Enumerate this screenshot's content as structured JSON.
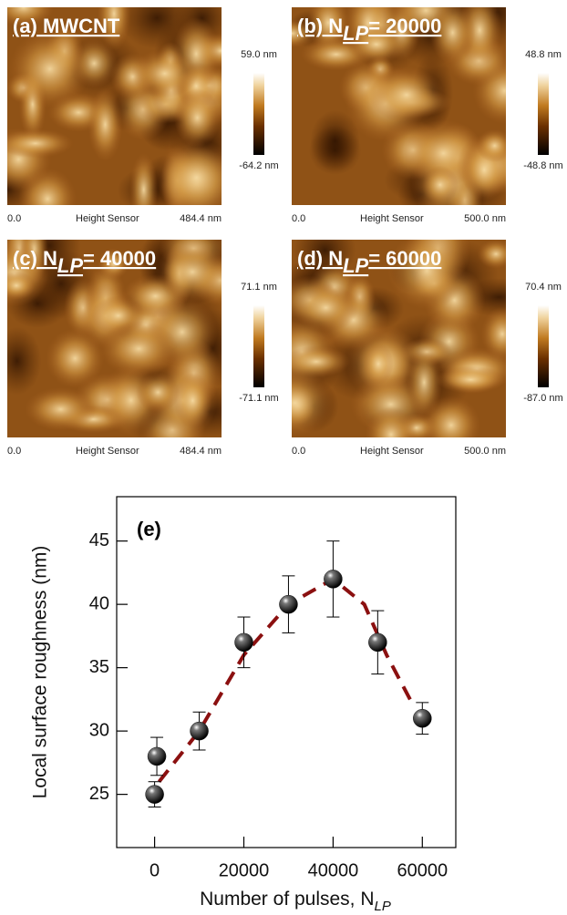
{
  "panels": [
    {
      "label_prefix": "(a) MWCNT",
      "max_label": "59.0 nm",
      "min_label": "-64.2 nm",
      "x_start": "0.0",
      "channel": "Height Sensor",
      "scan_size": "484.4 nm"
    },
    {
      "label_prefix": "(b) N",
      "label_sub": "LP",
      "label_suffix": "= 20000",
      "max_label": "48.8 nm",
      "min_label": "-48.8 nm",
      "x_start": "0.0",
      "channel": "Height Sensor",
      "scan_size": "500.0 nm"
    },
    {
      "label_prefix": "(c) N",
      "label_sub": "LP",
      "label_suffix": "= 40000",
      "max_label": "71.1 nm",
      "min_label": "-71.1 nm",
      "x_start": "0.0",
      "channel": "Height Sensor",
      "scan_size": "484.4 nm"
    },
    {
      "label_prefix": "(d) N",
      "label_sub": "LP",
      "label_suffix": "= 60000",
      "max_label": "70.4 nm",
      "min_label": "-87.0 nm",
      "x_start": "0.0",
      "channel": "Height Sensor",
      "scan_size": "500.0 nm"
    }
  ],
  "chart_data": {
    "type": "scatter",
    "annotation": "(e)",
    "y_label": "Local surface roughness (nm)",
    "x_label": "Number of pulses, N",
    "x_label_sub": "LP",
    "xlim": [
      -8500,
      67500
    ],
    "xticks": [
      0,
      20000,
      40000,
      60000
    ],
    "ylim": [
      20.8,
      48.5
    ],
    "yticks": [
      25,
      30,
      35,
      40,
      45
    ],
    "series": [
      {
        "style": "markers",
        "color": "#111111",
        "x": [
          0,
          500,
          10000,
          20000,
          30000,
          40000,
          50000,
          60000
        ],
        "values": [
          25,
          28,
          30,
          37,
          40,
          42,
          37,
          31
        ],
        "errors": [
          1,
          1.5,
          1.5,
          2,
          2.25,
          3,
          2.5,
          1.25
        ]
      },
      {
        "style": "dashed-line",
        "color": "#8b1010",
        "x": [
          1000,
          10000,
          20000,
          30000,
          40000,
          47000,
          52000,
          58000
        ],
        "values": [
          26,
          30,
          36,
          40,
          42,
          40,
          36,
          32
        ]
      }
    ]
  }
}
